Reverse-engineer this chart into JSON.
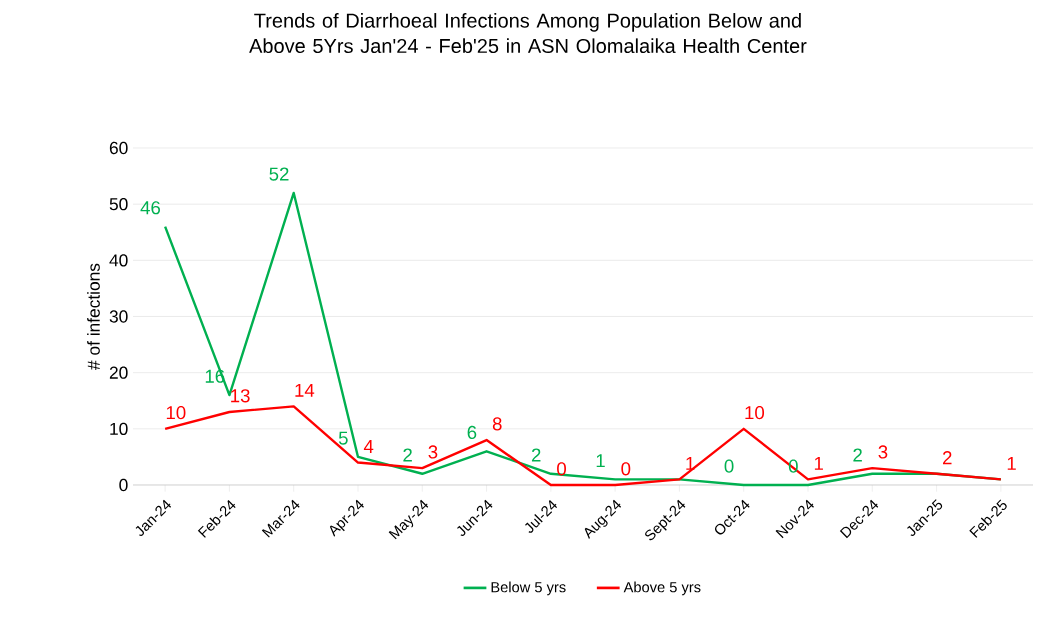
{
  "chart_data": {
    "type": "line",
    "title": "Trends of Diarrhoeal Infections Among Population Below and Above 5Yrs Jan'24 - Feb'25 in ASN Olomalaika Health Center",
    "ylabel": "# of infections",
    "categories": [
      "Jan-24",
      "Feb-24",
      "Mar-24",
      "Apr-24",
      "May-24",
      "Jun-24",
      "Jul-24",
      "Aug-24",
      "Sept-24",
      "Oct-24",
      "Nov-24",
      "Dec-24",
      "Jan-25",
      "Feb-25"
    ],
    "series": [
      {
        "name": "Below 5 yrs",
        "color": "#00b050",
        "values": [
          46,
          16,
          52,
          5,
          2,
          6,
          2,
          1,
          1,
          0,
          0,
          2,
          2,
          1
        ],
        "value_labels": [
          "46",
          "16",
          "52",
          "5",
          "2",
          "6",
          "2",
          "1",
          null,
          "0",
          "0",
          "2",
          null,
          null
        ]
      },
      {
        "name": "Above 5 yrs",
        "color": "#ff0000",
        "values": [
          10,
          13,
          14,
          4,
          3,
          8,
          0,
          0,
          1,
          10,
          1,
          3,
          2,
          1
        ],
        "value_labels": [
          "10",
          "13",
          "14",
          "4",
          "3",
          "8",
          "0",
          "0",
          "1",
          "10",
          "1",
          "3",
          "2",
          "1"
        ]
      }
    ],
    "ylim": [
      0,
      60
    ],
    "yticks": [
      0,
      10,
      20,
      30,
      40,
      50,
      60
    ],
    "grid": "y",
    "legend": "bottom",
    "marker": "none",
    "line_style": "solid"
  }
}
